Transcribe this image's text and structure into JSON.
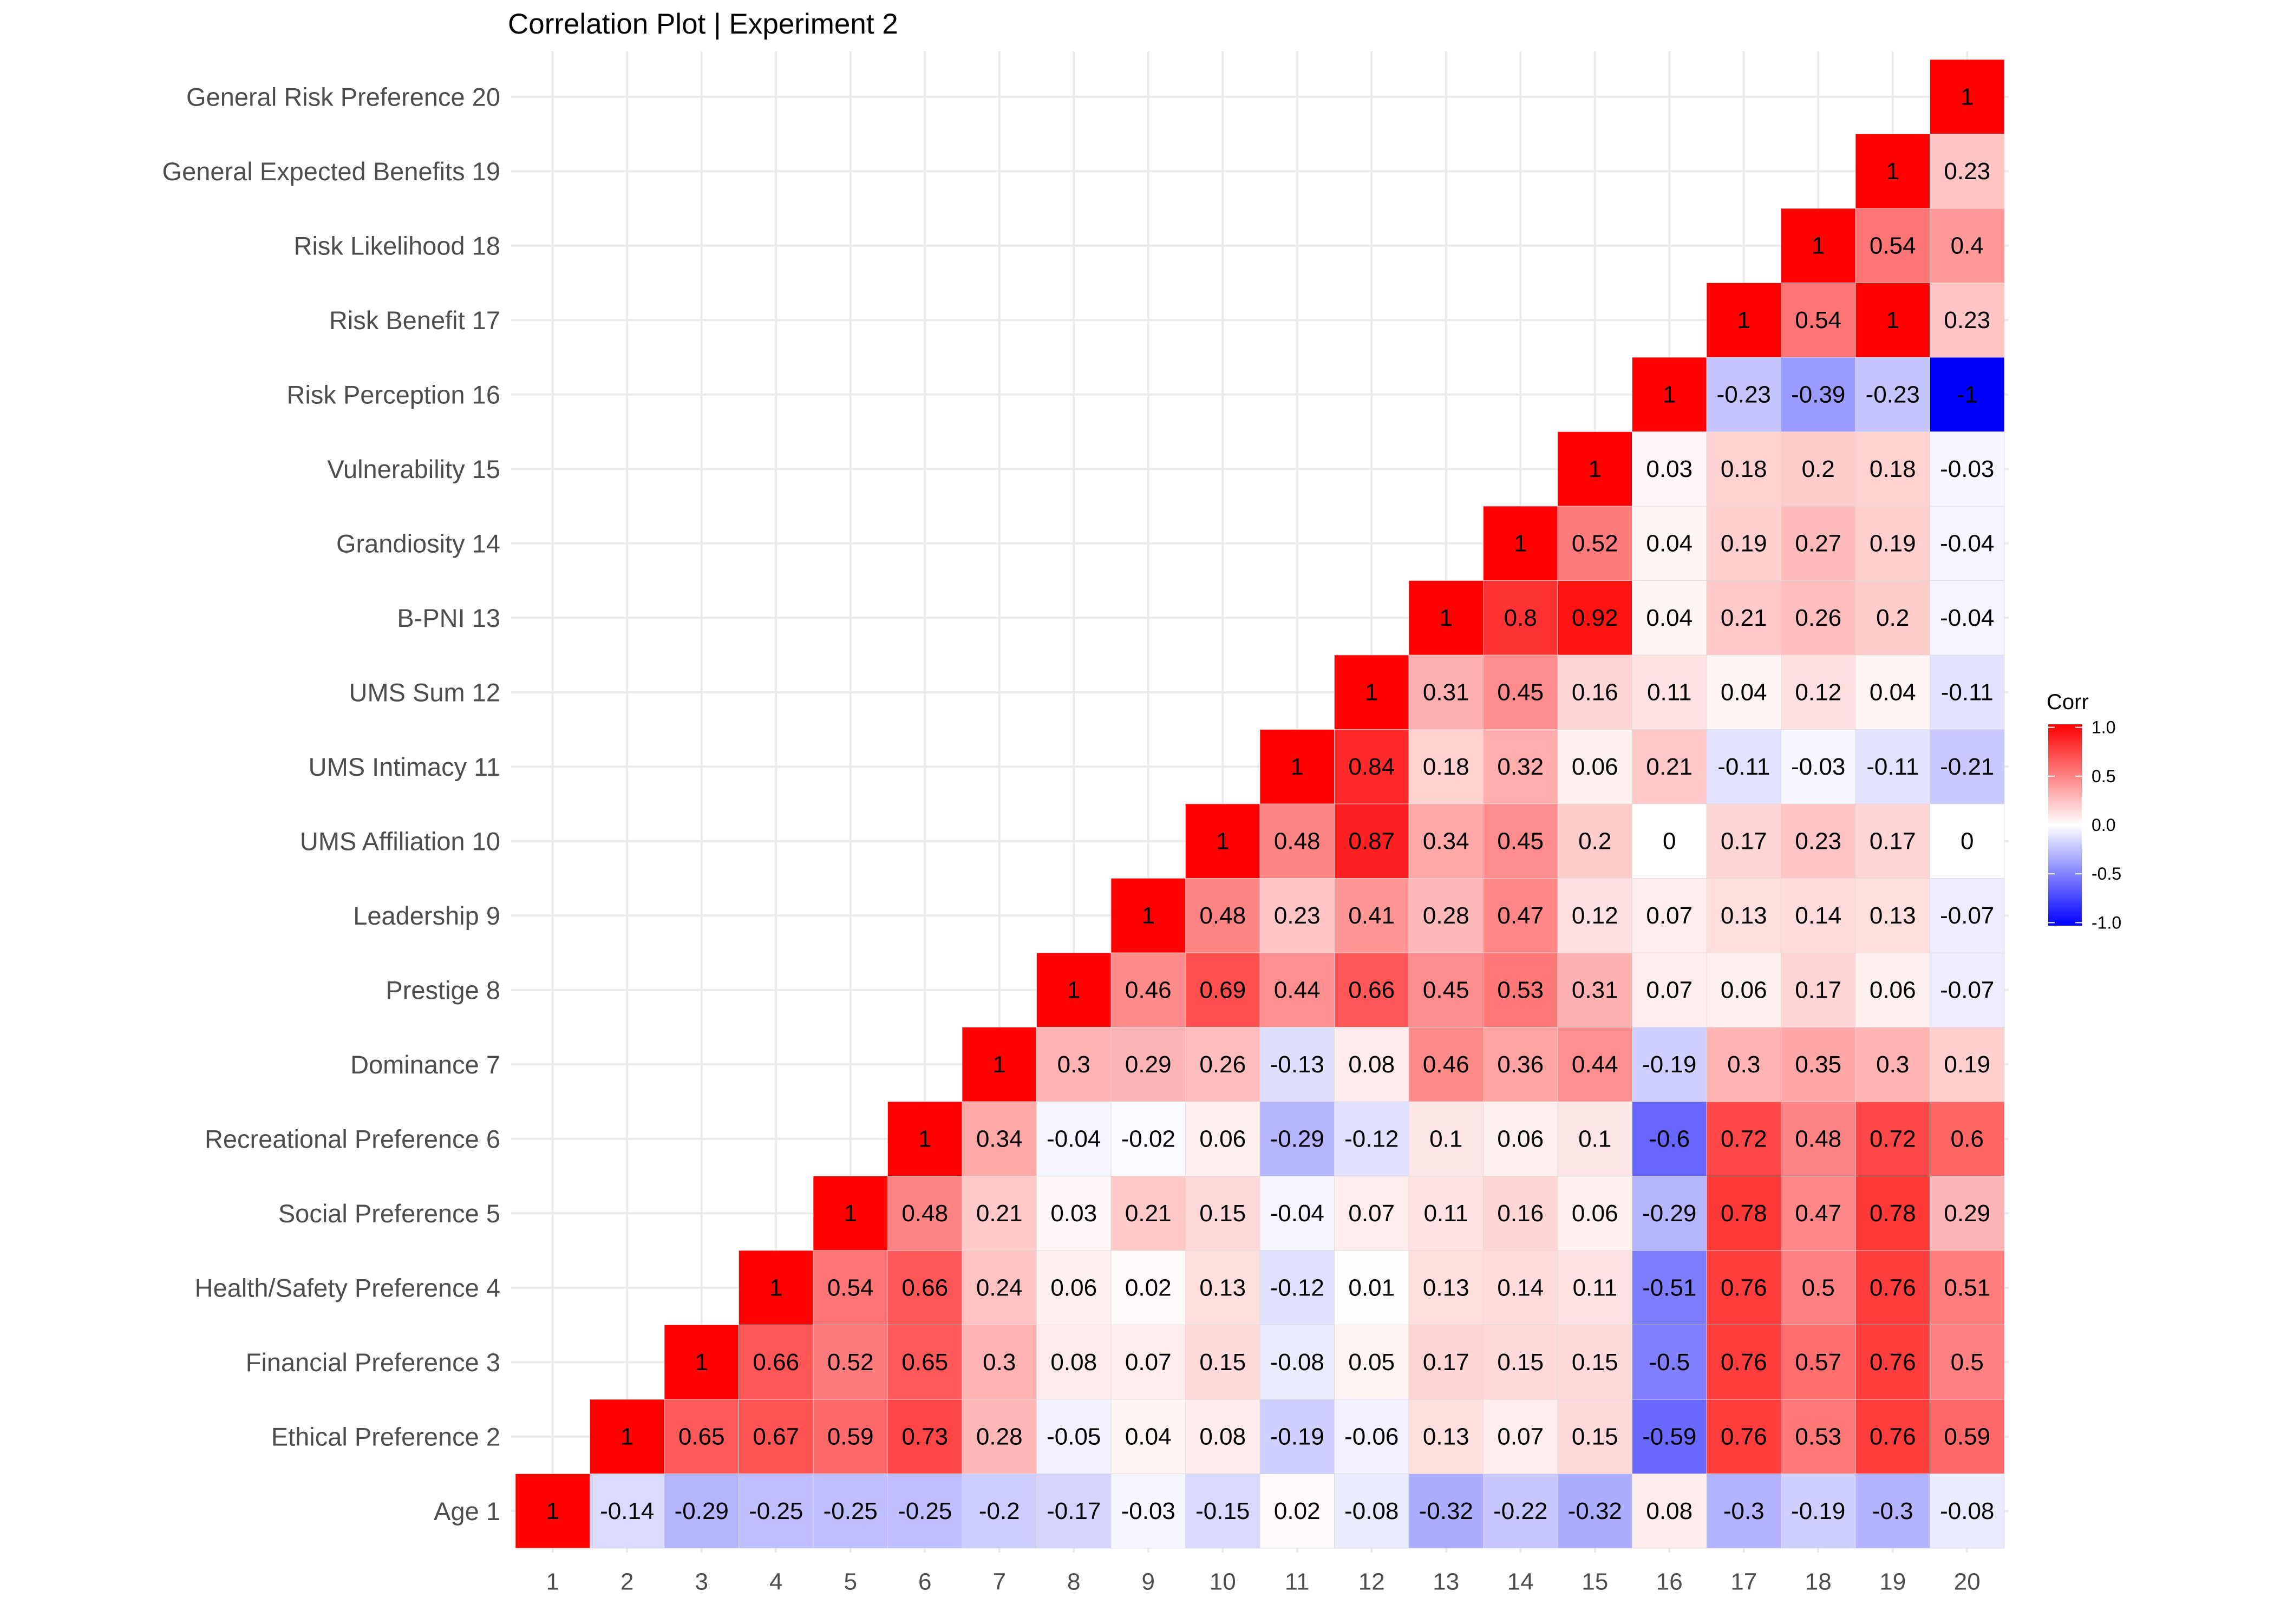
{
  "chart_data": {
    "type": "heatmap",
    "title": "Correlation Plot | Experiment 2",
    "x_categories": [
      "1",
      "2",
      "3",
      "4",
      "5",
      "6",
      "7",
      "8",
      "9",
      "10",
      "11",
      "12",
      "13",
      "14",
      "15",
      "16",
      "17",
      "18",
      "19",
      "20"
    ],
    "y_categories": [
      "Age 1",
      "Ethical Preference 2",
      "Financial Preference 3",
      "Health/Safety Preference 4",
      "Social Preference 5",
      "Recreational Preference 6",
      "Dominance 7",
      "Prestige 8",
      "Leadership 9",
      "UMS Affiliation 10",
      "UMS Intimacy 11",
      "UMS Sum 12",
      "B-PNI 13",
      "Grandiosity 14",
      "Vulnerability 15",
      "Risk Perception 16",
      "Risk Benefit 17",
      "Risk Likelihood 18",
      "General Expected Benefits 19",
      "General Risk Preference 20"
    ],
    "values": [
      [
        1,
        -0.14,
        -0.29,
        -0.25,
        -0.25,
        -0.25,
        -0.2,
        -0.17,
        -0.03,
        -0.15,
        0.02,
        -0.08,
        -0.32,
        -0.22,
        -0.32,
        0.08,
        -0.3,
        -0.19,
        -0.3,
        -0.08
      ],
      [
        null,
        1,
        0.65,
        0.67,
        0.59,
        0.73,
        0.28,
        -0.05,
        0.04,
        0.08,
        -0.19,
        -0.06,
        0.13,
        0.07,
        0.15,
        -0.59,
        0.76,
        0.53,
        0.76,
        0.59
      ],
      [
        null,
        null,
        1,
        0.66,
        0.52,
        0.65,
        0.3,
        0.08,
        0.07,
        0.15,
        -0.08,
        0.05,
        0.17,
        0.15,
        0.15,
        -0.5,
        0.76,
        0.57,
        0.76,
        0.5
      ],
      [
        null,
        null,
        null,
        1,
        0.54,
        0.66,
        0.24,
        0.06,
        0.02,
        0.13,
        -0.12,
        0.01,
        0.13,
        0.14,
        0.11,
        -0.51,
        0.76,
        0.5,
        0.76,
        0.51
      ],
      [
        null,
        null,
        null,
        null,
        1,
        0.48,
        0.21,
        0.03,
        0.21,
        0.15,
        -0.04,
        0.07,
        0.11,
        0.16,
        0.06,
        -0.29,
        0.78,
        0.47,
        0.78,
        0.29
      ],
      [
        null,
        null,
        null,
        null,
        null,
        1,
        0.34,
        -0.04,
        -0.02,
        0.06,
        -0.29,
        -0.12,
        0.1,
        0.06,
        0.1,
        -0.6,
        0.72,
        0.48,
        0.72,
        0.6
      ],
      [
        null,
        null,
        null,
        null,
        null,
        null,
        1,
        0.3,
        0.29,
        0.26,
        -0.13,
        0.08,
        0.46,
        0.36,
        0.44,
        -0.19,
        0.3,
        0.35,
        0.3,
        0.19
      ],
      [
        null,
        null,
        null,
        null,
        null,
        null,
        null,
        1,
        0.46,
        0.69,
        0.44,
        0.66,
        0.45,
        0.53,
        0.31,
        0.07,
        0.06,
        0.17,
        0.06,
        -0.07
      ],
      [
        null,
        null,
        null,
        null,
        null,
        null,
        null,
        null,
        1,
        0.48,
        0.23,
        0.41,
        0.28,
        0.47,
        0.12,
        0.07,
        0.13,
        0.14,
        0.13,
        -0.07
      ],
      [
        null,
        null,
        null,
        null,
        null,
        null,
        null,
        null,
        null,
        1,
        0.48,
        0.87,
        0.34,
        0.45,
        0.2,
        0,
        0.17,
        0.23,
        0.17,
        0
      ],
      [
        null,
        null,
        null,
        null,
        null,
        null,
        null,
        null,
        null,
        null,
        1,
        0.84,
        0.18,
        0.32,
        0.06,
        0.21,
        -0.11,
        -0.03,
        -0.11,
        -0.21
      ],
      [
        null,
        null,
        null,
        null,
        null,
        null,
        null,
        null,
        null,
        null,
        null,
        1,
        0.31,
        0.45,
        0.16,
        0.11,
        0.04,
        0.12,
        0.04,
        -0.11
      ],
      [
        null,
        null,
        null,
        null,
        null,
        null,
        null,
        null,
        null,
        null,
        null,
        null,
        1,
        0.8,
        0.92,
        0.04,
        0.21,
        0.26,
        0.2,
        -0.04
      ],
      [
        null,
        null,
        null,
        null,
        null,
        null,
        null,
        null,
        null,
        null,
        null,
        null,
        null,
        1,
        0.52,
        0.04,
        0.19,
        0.27,
        0.19,
        -0.04
      ],
      [
        null,
        null,
        null,
        null,
        null,
        null,
        null,
        null,
        null,
        null,
        null,
        null,
        null,
        null,
        1,
        0.03,
        0.18,
        0.2,
        0.18,
        -0.03
      ],
      [
        null,
        null,
        null,
        null,
        null,
        null,
        null,
        null,
        null,
        null,
        null,
        null,
        null,
        null,
        null,
        1,
        -0.23,
        -0.39,
        -0.23,
        -1
      ],
      [
        null,
        null,
        null,
        null,
        null,
        null,
        null,
        null,
        null,
        null,
        null,
        null,
        null,
        null,
        null,
        null,
        1,
        0.54,
        1,
        0.23
      ],
      [
        null,
        null,
        null,
        null,
        null,
        null,
        null,
        null,
        null,
        null,
        null,
        null,
        null,
        null,
        null,
        null,
        null,
        1,
        0.54,
        0.4
      ],
      [
        null,
        null,
        null,
        null,
        null,
        null,
        null,
        null,
        null,
        null,
        null,
        null,
        null,
        null,
        null,
        null,
        null,
        null,
        1,
        0.23
      ],
      [
        null,
        null,
        null,
        null,
        null,
        null,
        null,
        null,
        null,
        null,
        null,
        null,
        null,
        null,
        null,
        null,
        null,
        null,
        null,
        1
      ]
    ],
    "color_scale": {
      "low": "#0000FF",
      "mid": "#FFFFFF",
      "high": "#FF0000",
      "limits": [
        -1,
        1
      ]
    },
    "legend": {
      "title": "Corr",
      "ticks": [
        "1.0",
        "0.5",
        "0.0",
        "-0.5",
        "-1.0"
      ],
      "position": "right"
    },
    "grid": true
  }
}
